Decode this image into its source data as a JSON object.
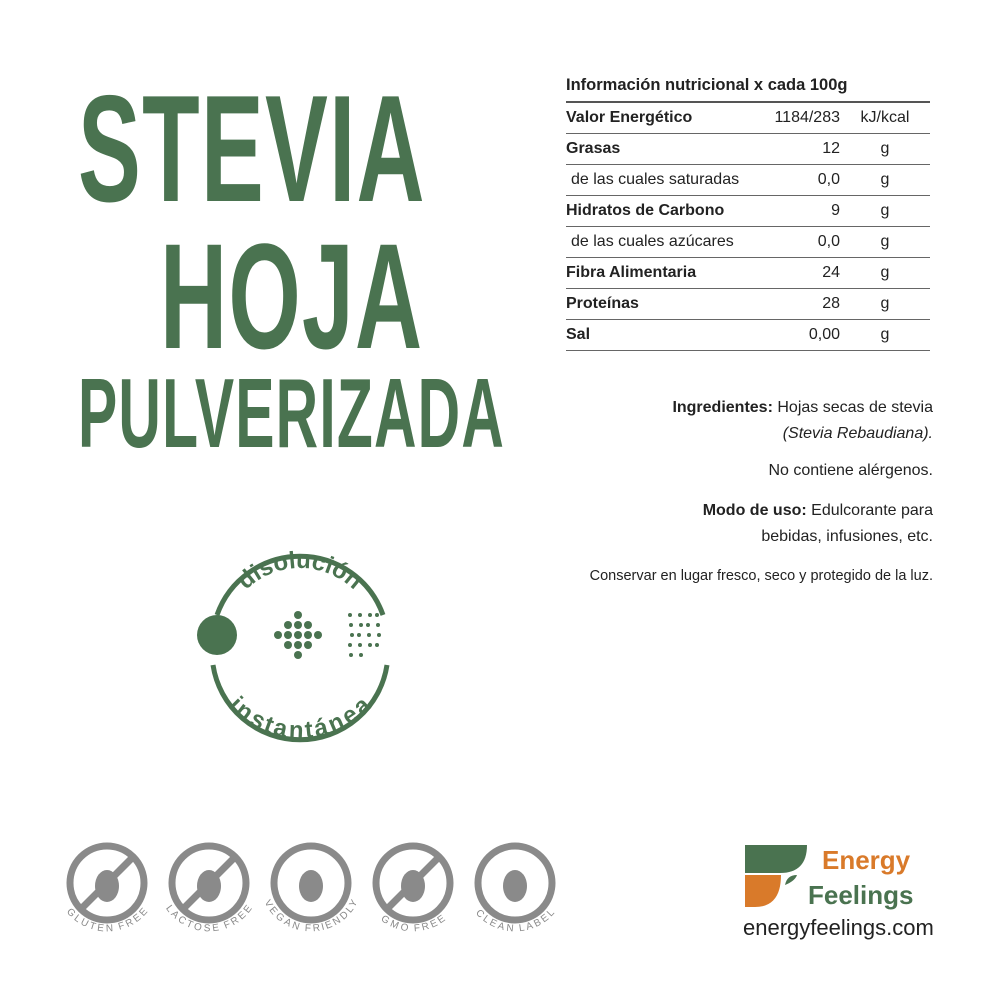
{
  "title": {
    "line1": "STEVIA",
    "line2": "HOJA",
    "line3": "PULVERIZADA"
  },
  "nutrition": {
    "header": "Información nutricional x cada 100g",
    "rows": [
      {
        "name": "Valor Energético",
        "value": "1184/283",
        "unit": "kJ/kcal"
      },
      {
        "name": "Grasas",
        "value": "12",
        "unit": "g"
      },
      {
        "name": "de las cuales saturadas",
        "value": "0,0",
        "unit": "g"
      },
      {
        "name": "Hidratos de Carbono",
        "value": "9",
        "unit": "g"
      },
      {
        "name": "de las cuales azúcares",
        "value": "0,0",
        "unit": "g"
      },
      {
        "name": "Fibra Alimentaria",
        "value": "24",
        "unit": "g"
      },
      {
        "name": "Proteínas",
        "value": "28",
        "unit": "g"
      },
      {
        "name": "Sal",
        "value": "0,00",
        "unit": "g"
      }
    ]
  },
  "ingredients": {
    "label": "Ingredientes:",
    "text": "Hojas secas de stevia",
    "latin": "(Stevia Rebaudiana)."
  },
  "allergens": "No contiene alérgenos.",
  "usage": {
    "label": "Modo de uso:",
    "text1": "Edulcorante para",
    "text2": "bebidas, infusiones, etc."
  },
  "storage": "Conservar en lugar fresco, seco y protegido de la luz.",
  "badge": {
    "top": "disolución",
    "bottom": "instantánea"
  },
  "icons": [
    "GLUTEN FREE",
    "LACTOSE FREE",
    "VEGAN FRIENDLY",
    "GMO FREE",
    "CLEAN LABEL"
  ],
  "brand": {
    "line1": "Energy",
    "line2": "Feelings",
    "url": "energyfeelings.com"
  },
  "colors": {
    "green": "#4a7350",
    "orange": "#d97a2a",
    "gray": "#8a8a8a"
  }
}
